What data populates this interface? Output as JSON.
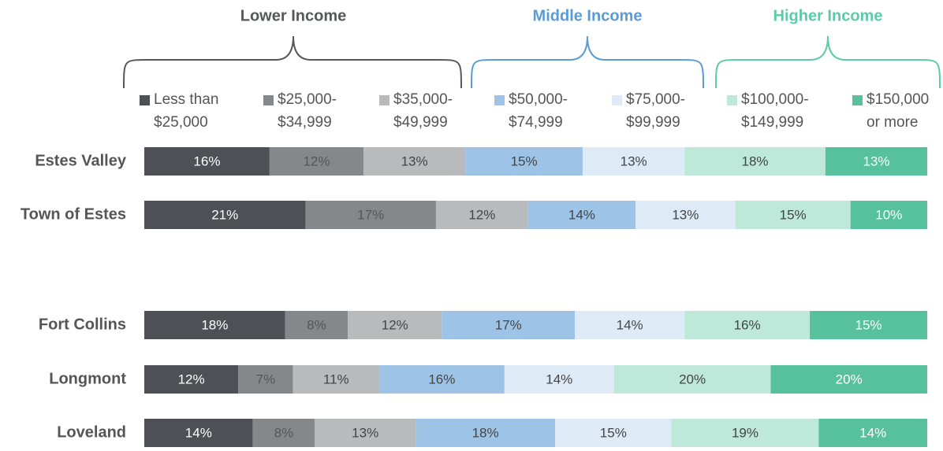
{
  "chart_data": {
    "type": "stacked-bar-horizontal",
    "groups": [
      {
        "label": "Lower Income",
        "color": "#555759"
      },
      {
        "label": "Middle Income",
        "color": "#5b9bd5"
      },
      {
        "label": "Higher Income",
        "color": "#5cc9a7"
      }
    ],
    "categories": [
      "Estes Valley",
      "Town of Estes",
      "Fort Collins",
      "Longmont",
      "Loveland"
    ],
    "series": [
      {
        "name": "Less than $25,000",
        "color": "#4d5054",
        "values": [
          16,
          21,
          18,
          12,
          14
        ],
        "value_labels": [
          "16%",
          "21%",
          "18%",
          "12%",
          "14%"
        ]
      },
      {
        "name": "$25,000-$34,999",
        "color": "#85888b",
        "values": [
          12,
          17,
          8,
          7,
          8
        ],
        "value_labels": [
          "12%",
          "17%",
          "8%",
          "7%",
          "8%"
        ]
      },
      {
        "name": "$35,000-$49,999",
        "color": "#b8babb",
        "values": [
          13,
          12,
          12,
          11,
          13
        ],
        "value_labels": [
          "13%",
          "12%",
          "12%",
          "11%",
          "13%"
        ]
      },
      {
        "name": "$50,000-$74,999",
        "color": "#9dc3e6",
        "values": [
          15,
          14,
          17,
          16,
          18
        ],
        "value_labels": [
          "15%",
          "14%",
          "17%",
          "16%",
          "18%"
        ]
      },
      {
        "name": "$75,000-$99,999",
        "color": "#deebf7",
        "values": [
          13,
          13,
          14,
          14,
          15
        ],
        "value_labels": [
          "13%",
          "13%",
          "14%",
          "14%",
          "15%"
        ]
      },
      {
        "name": "$100,000-$149,999",
        "color": "#bde8da",
        "values": [
          18,
          15,
          16,
          20,
          19
        ],
        "value_labels": [
          "18%",
          "15%",
          "16%",
          "20%",
          "19%"
        ]
      },
      {
        "name": "$150,000 or more",
        "color": "#56c19c",
        "values": [
          13,
          10,
          15,
          20,
          14
        ],
        "value_labels": [
          "13%",
          "10%",
          "15%",
          "20%",
          "14%"
        ]
      }
    ]
  }
}
